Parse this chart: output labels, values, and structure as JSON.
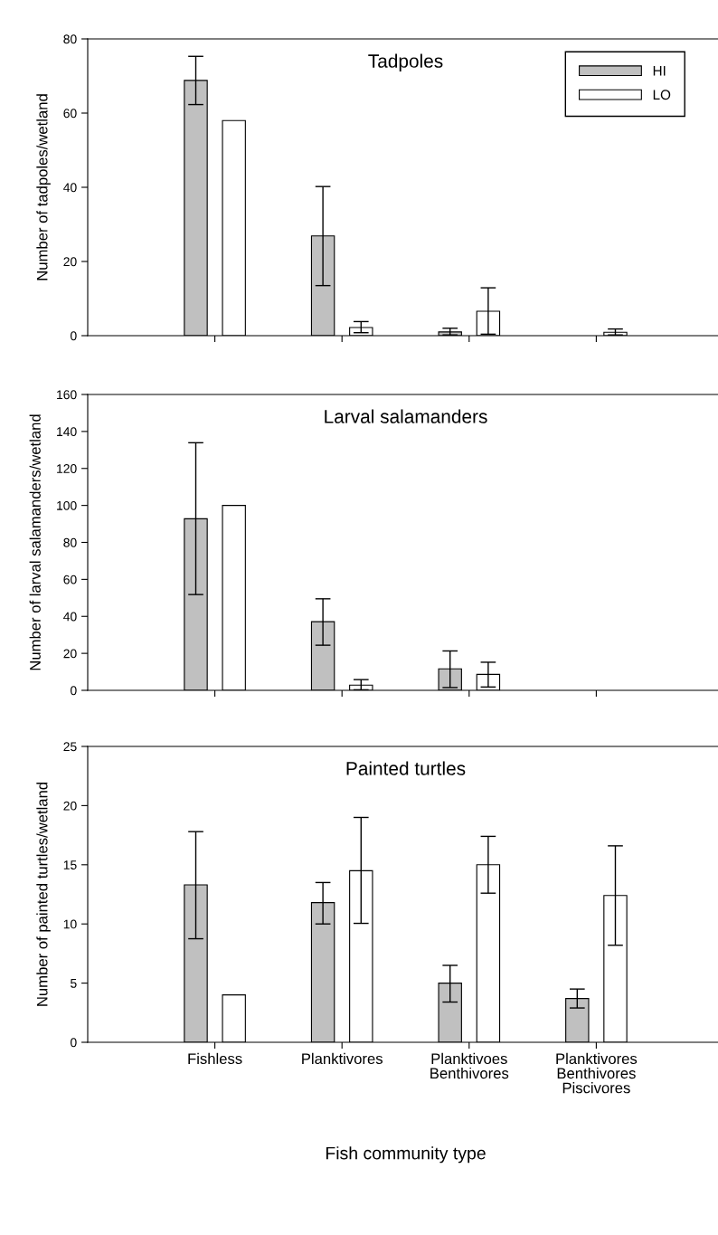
{
  "chart_data": [
    {
      "type": "bar",
      "title": "Tadpoles",
      "ylabel": "Number of tadpoles/wetland",
      "categories": [
        null,
        null,
        null,
        null
      ],
      "ylim": [
        0,
        80
      ],
      "yticks": [
        0,
        20,
        40,
        60,
        80
      ],
      "tick_labels": "y",
      "legend": "top right",
      "series": [
        {
          "name": "HI",
          "color": "#c0c0c0",
          "values": [
            68.8,
            26.9,
            1.0,
            null
          ],
          "errors": [
            [
              62.3,
              75.3
            ],
            [
              13.5,
              40.2
            ],
            [
              0.2,
              2.0
            ],
            null
          ]
        },
        {
          "name": "LO",
          "color": "#ffffff",
          "values": [
            58.0,
            2.2,
            6.6,
            0.9
          ],
          "errors": [
            null,
            [
              0.8,
              3.8
            ],
            [
              0.4,
              12.9
            ],
            [
              0.2,
              1.8
            ]
          ]
        }
      ]
    },
    {
      "type": "bar",
      "title": "Larval salamanders",
      "ylabel": "Number of larval salamanders/wetland",
      "categories": [
        null,
        null,
        null,
        null
      ],
      "ylim": [
        0,
        160
      ],
      "yticks": [
        0,
        20,
        40,
        60,
        80,
        100,
        120,
        140,
        160
      ],
      "tick_labels": "y",
      "series": [
        {
          "color": "#c0c0c0",
          "values": [
            92.8,
            37.1,
            11.6,
            null
          ],
          "errors": [
            [
              51.8,
              133.9
            ],
            [
              24.4,
              49.5
            ],
            [
              1.5,
              21.3
            ],
            null
          ]
        },
        {
          "color": "#ffffff",
          "values": [
            100,
            2.8,
            8.6,
            null
          ],
          "errors": [
            null,
            [
              0.3,
              5.8
            ],
            [
              1.8,
              15.2
            ],
            null
          ]
        }
      ]
    },
    {
      "type": "bar",
      "title": "Painted turtles",
      "ylabel": "Number of painted turtles/wetland",
      "xlabel": "Fish community type",
      "categories": [
        "Fishless",
        "Planktivores",
        "Planktivoes\nBenthivores",
        "Planktivores\nBenthivores\nPiscivores"
      ],
      "ylim": [
        0,
        25
      ],
      "yticks": [
        0,
        5,
        10,
        15,
        20,
        25
      ],
      "series": [
        {
          "color": "#c0c0c0",
          "values": [
            13.3,
            11.8,
            5.0,
            3.7
          ],
          "errors": [
            [
              8.75,
              17.8
            ],
            [
              10.0,
              13.5
            ],
            [
              3.4,
              6.5
            ],
            [
              2.9,
              4.5
            ]
          ]
        },
        {
          "color": "#ffffff",
          "values": [
            4.0,
            14.5,
            15.0,
            12.4
          ],
          "errors": [
            null,
            [
              10.05,
              19.0
            ],
            [
              12.6,
              17.4
            ],
            [
              8.2,
              16.6
            ]
          ]
        }
      ]
    }
  ]
}
